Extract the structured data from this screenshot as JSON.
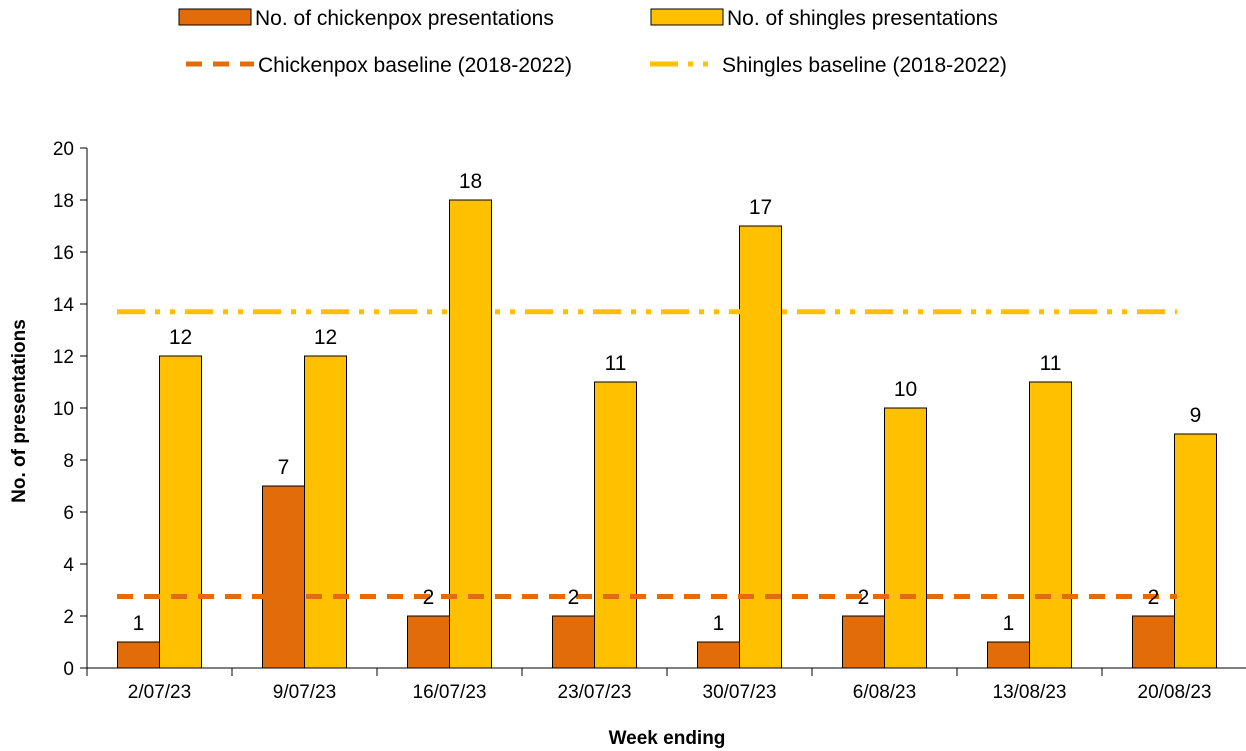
{
  "chart_data": {
    "type": "bar",
    "categories": [
      "2/07/23",
      "9/07/23",
      "16/07/23",
      "23/07/23",
      "30/07/23",
      "6/08/23",
      "13/08/23",
      "20/08/23"
    ],
    "series": [
      {
        "name": "No. of chickenpox presentations",
        "values": [
          1,
          7,
          2,
          2,
          1,
          2,
          1,
          2
        ],
        "color": "#E36C0A"
      },
      {
        "name": "No. of shingles presentations",
        "values": [
          12,
          12,
          18,
          11,
          17,
          10,
          11,
          9
        ],
        "color": "#FFC000"
      }
    ],
    "baselines": [
      {
        "name": "Chickenpox baseline (2018-2022)",
        "value": 2.75,
        "color": "#E36C0A",
        "style": "dashed"
      },
      {
        "name": "Shingles baseline (2018-2022)",
        "value": 13.7,
        "color": "#FFC000",
        "style": "long-dash-dot-dot"
      }
    ],
    "xlabel": "Week ending",
    "ylabel": "No. of presentations",
    "ylim": [
      0,
      20
    ],
    "yticks": [
      0,
      2,
      4,
      6,
      8,
      10,
      12,
      14,
      16,
      18,
      20
    ],
    "grid": false,
    "legend_position": "top"
  }
}
